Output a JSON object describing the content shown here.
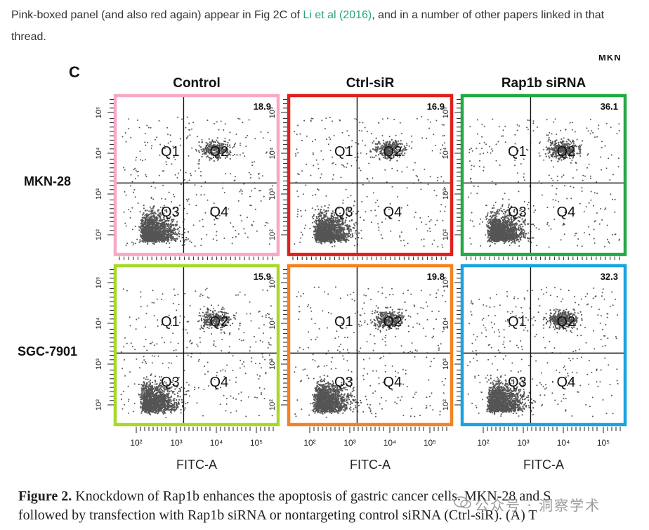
{
  "intro": {
    "text_before": "Pink-boxed panel (and also red again) appear in Fig 2C of ",
    "link": "Li et al (2016)",
    "text_after": ", and in a number of other papers linked in that thread."
  },
  "figure": {
    "panel_letter": "C",
    "crop_text": "MKN",
    "columns": [
      "Control",
      "Ctrl-siR",
      "Rap1b siRNA"
    ],
    "rows": [
      "MKN-28",
      "SGC-7901"
    ],
    "x_axis_title": "FITC-A",
    "x_ticks": [
      "10²",
      "10³",
      "10⁴",
      "10⁵"
    ],
    "y_ticks": [
      "10²",
      "10³",
      "10⁴",
      "10⁵"
    ],
    "quadrant_labels": [
      "Q1",
      "Q2",
      "Q3",
      "Q4"
    ],
    "box_colors": {
      "pink": "#f7a8c8",
      "red": "#e0201c",
      "green": "#22aa44",
      "lime": "#a6d92a",
      "orange": "#f58220",
      "blue": "#19a3e0"
    },
    "panels": [
      {
        "row": 0,
        "col": 0,
        "value": "18.9",
        "box": "pink"
      },
      {
        "row": 0,
        "col": 1,
        "value": "16.9",
        "box": "red"
      },
      {
        "row": 0,
        "col": 2,
        "value": "36.1",
        "box": "green"
      },
      {
        "row": 1,
        "col": 0,
        "value": "15.9",
        "box": "lime"
      },
      {
        "row": 1,
        "col": 1,
        "value": "19.8",
        "box": "orange"
      },
      {
        "row": 1,
        "col": 2,
        "value": "32.3",
        "box": "blue"
      }
    ]
  },
  "caption": {
    "label": "Figure 2.",
    "line1": " Knockdown of Rap1b enhances the apoptosis of gastric cancer cells. MKN-28 and S",
    "line2": "followed by transfection with Rap1b siRNA or nontargeting control siRNA (Ctrl-siR). (A) T"
  },
  "watermark": "公众号 · 洞察学术"
}
